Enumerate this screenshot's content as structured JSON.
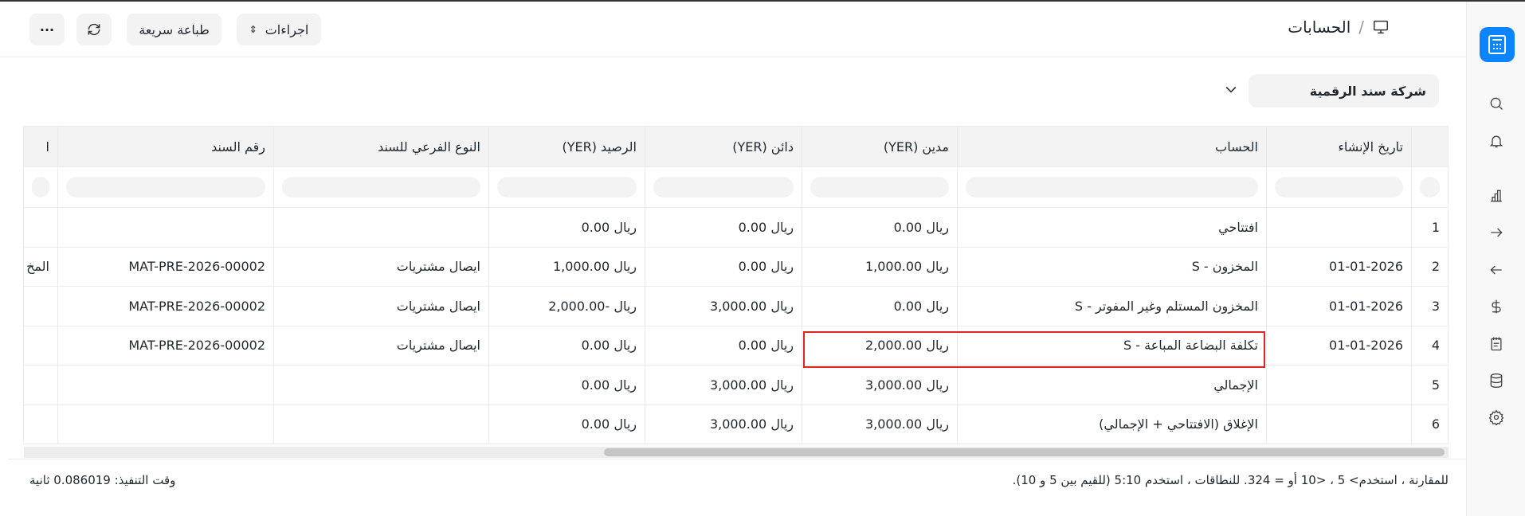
{
  "header": {
    "title": "الحسابات",
    "breadcrumb_sep": "/",
    "actions_label": "اجراءات",
    "print_label": "طباعة سريعة",
    "more_label": "···"
  },
  "filter": {
    "company": "شركة سند الرقمية"
  },
  "table": {
    "columns": [
      "",
      "تاريخ الإنشاء",
      "الحساب",
      "مدين (YER)",
      "دائن (YER)",
      "الرصيد (YER)",
      "النوع الفرعي للسند",
      "رقم السند",
      "ا"
    ],
    "rows": [
      {
        "idx": "1",
        "date": "",
        "account": "افتتاحي",
        "debit": "ريال 0.00",
        "credit": "ريال 0.00",
        "balance": "ريال 0.00",
        "subtype": "",
        "voucher": "",
        "extra": ""
      },
      {
        "idx": "2",
        "date": "01-01-2026",
        "account": "المخزون - S",
        "debit": "ريال 1,000.00",
        "credit": "ريال 0.00",
        "balance": "ريال 1,000.00",
        "subtype": "ايصال مشتريات",
        "voucher": "MAT-PRE-2026-00002",
        "extra": "المخ"
      },
      {
        "idx": "3",
        "date": "01-01-2026",
        "account": "المخزون المستلم وغير المفوتر - S",
        "debit": "ريال 0.00",
        "credit": "ريال 3,000.00",
        "balance": "ريال -2,000.00",
        "subtype": "ايصال مشتريات",
        "voucher": "MAT-PRE-2026-00002",
        "extra": ""
      },
      {
        "idx": "4",
        "date": "01-01-2026",
        "account": "تكلفة البضاعة المباعة - S",
        "debit": "ريال 2,000.00",
        "credit": "ريال 0.00",
        "balance": "ريال 0.00",
        "subtype": "ايصال مشتريات",
        "voucher": "MAT-PRE-2026-00002",
        "extra": ""
      },
      {
        "idx": "5",
        "date": "",
        "account": "الإجمالي",
        "debit": "ريال 3,000.00",
        "credit": "ريال 3,000.00",
        "balance": "ريال 0.00",
        "subtype": "",
        "voucher": "",
        "extra": ""
      },
      {
        "idx": "6",
        "date": "",
        "account": "الإغلاق (الافتتاحي + الإجمالي)",
        "debit": "ريال 3,000.00",
        "credit": "ريال 3,000.00",
        "balance": "ريال 0.00",
        "subtype": "",
        "voucher": "",
        "extra": ""
      }
    ]
  },
  "footer": {
    "hint": "للمقارنة ، استخدم> 5 ، <10 أو = 324. للنطاقات ، استخدم 5:10 (للقيم بين 5 و 10).",
    "exec_time": "وقت التنفيذ: 0.086019 ثانية"
  },
  "colors": {
    "accent": "#0a84ff",
    "highlight": "#e02424"
  },
  "sidebar": {
    "icons": [
      "search-icon",
      "bell-icon",
      "bar-chart-icon",
      "arrow-right-icon",
      "arrow-left-icon",
      "dollar-icon",
      "notepad-icon",
      "database-icon",
      "gear-icon"
    ]
  }
}
